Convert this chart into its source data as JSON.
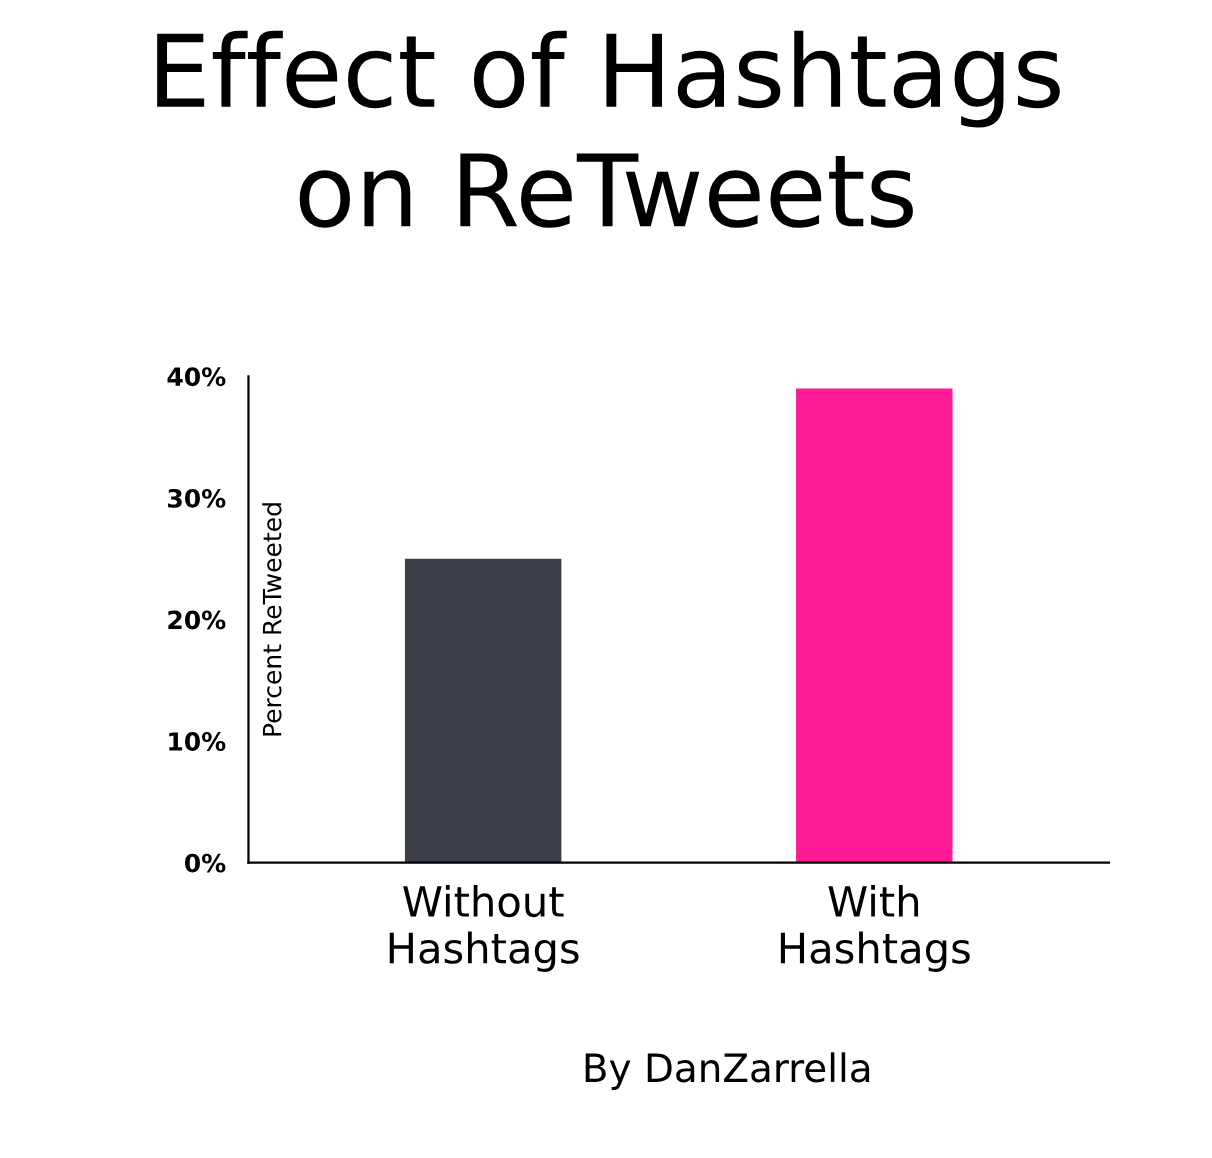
{
  "chart_data": {
    "type": "bar",
    "title": "Effect of Hashtags\non ReTweets",
    "ylabel": "Percent ReTweeted",
    "categories": [
      "Without\nHashtags",
      "With\nHashtags"
    ],
    "values": [
      25,
      39
    ],
    "colors": [
      "#3d4047",
      "#ff1a96"
    ],
    "ylim": [
      0,
      40
    ],
    "yticks": [
      {
        "value": 0,
        "label": "0%"
      },
      {
        "value": 10,
        "label": "10%"
      },
      {
        "value": 20,
        "label": "20%"
      },
      {
        "value": 30,
        "label": "30%"
      },
      {
        "value": 40,
        "label": "40%"
      }
    ],
    "grid": false,
    "legend": false,
    "annotations": [
      "By DanZarrella"
    ]
  }
}
